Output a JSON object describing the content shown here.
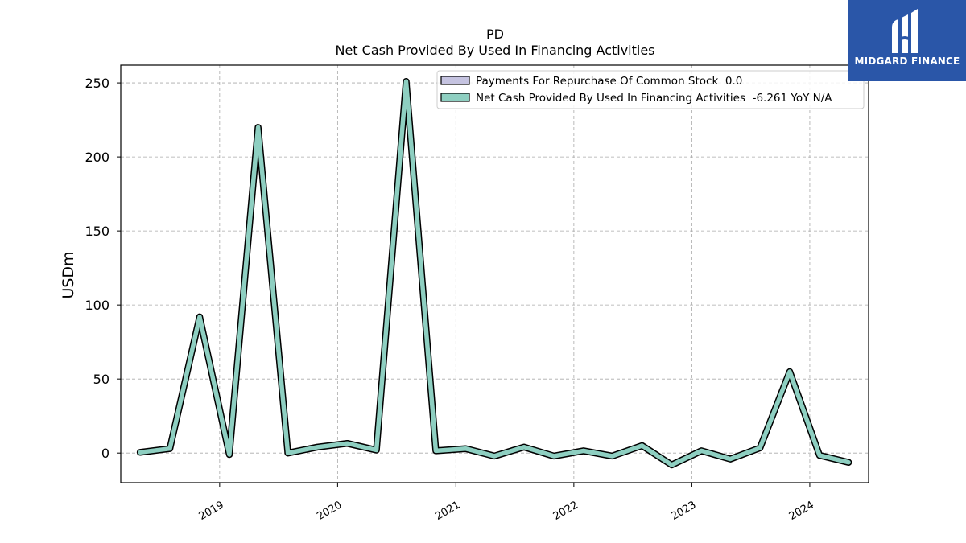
{
  "chart_data": {
    "type": "line",
    "title": "PD",
    "subtitle": "Net Cash Provided By Used In Financing Activities",
    "ylabel": "USDm",
    "xlabel": "",
    "ylim": [
      -20,
      262
    ],
    "xlim": [
      "2018-03-01",
      "2024-07-01"
    ],
    "yticks": [
      0,
      50,
      100,
      150,
      200,
      250
    ],
    "xticks": [
      "2019",
      "2020",
      "2021",
      "2022",
      "2023",
      "2024"
    ],
    "grid": true,
    "legend_position": "top-right",
    "series": [
      {
        "name": "Payments For Repurchase Of Common Stock  0.0",
        "color": "#c5c3e0",
        "x": [],
        "values": []
      },
      {
        "name": "Net Cash Provided By Used In Financing Activities  -6.261 YoY N/A",
        "color": "#8ecfc1",
        "x": [
          "2018-04-30",
          "2018-07-31",
          "2018-10-31",
          "2019-01-31",
          "2019-04-30",
          "2019-07-31",
          "2019-10-31",
          "2020-01-31",
          "2020-04-30",
          "2020-07-31",
          "2020-10-31",
          "2021-01-31",
          "2021-04-30",
          "2021-07-31",
          "2021-10-31",
          "2022-01-31",
          "2022-04-30",
          "2022-07-31",
          "2022-10-31",
          "2023-01-31",
          "2023-04-30",
          "2023-07-31",
          "2023-10-31",
          "2024-01-31",
          "2024-04-30"
        ],
        "values": [
          0.5,
          3,
          92,
          -1,
          220,
          0,
          4,
          6.5,
          2,
          251,
          1.5,
          3,
          -2,
          4,
          -2,
          1.5,
          -2,
          5,
          -8,
          1.5,
          -4,
          3.5,
          55,
          -1.5,
          -6.261
        ]
      }
    ]
  },
  "logo": {
    "text": "MIDGARD FINANCE",
    "bg": "#2a56a8"
  }
}
